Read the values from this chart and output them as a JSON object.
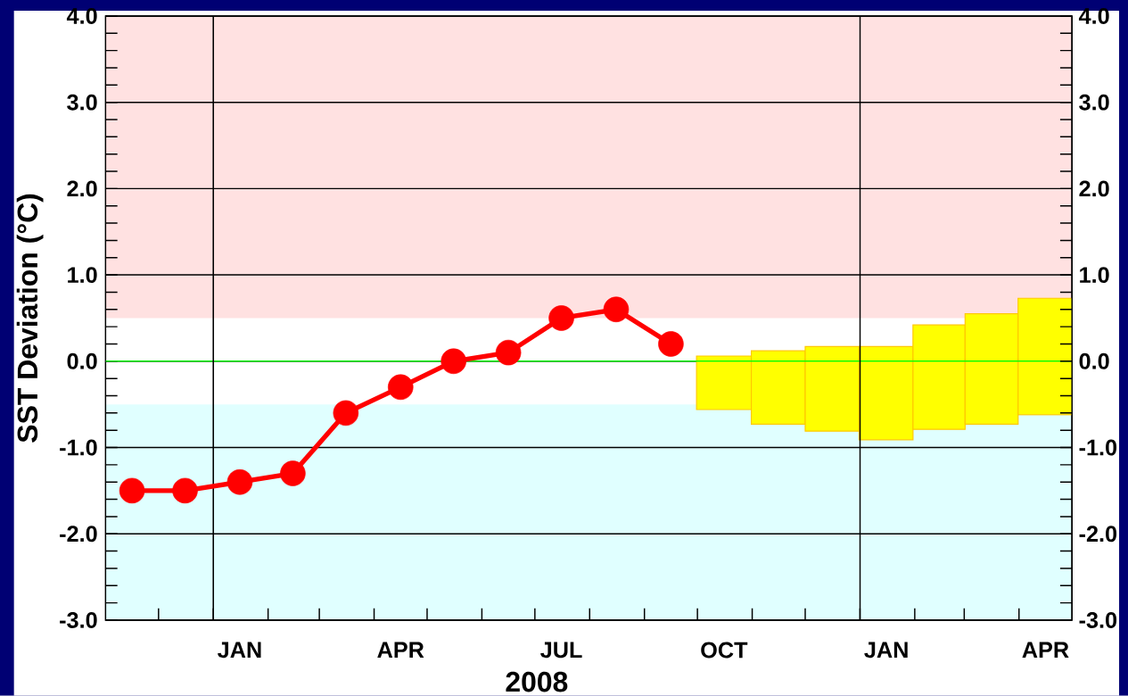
{
  "chart_data": {
    "type": "line",
    "ylabel": "SST Deviation (°C)",
    "xlabel": "2008",
    "xlim": [
      "2007-11-01",
      "2009-05-01"
    ],
    "xticks": [
      {
        "value": "2007-12-01",
        "label": null
      },
      {
        "value": "2008-01-01",
        "label": null
      },
      {
        "value": "2008-02-01",
        "label": null
      },
      {
        "value": "2008-03-01",
        "label": null
      },
      {
        "value": "2008-04-01",
        "label": null
      },
      {
        "value": "2008-05-01",
        "label": null
      },
      {
        "value": "2008-06-01",
        "label": null
      },
      {
        "value": "2008-07-01",
        "label": null
      },
      {
        "value": "2008-08-01",
        "label": null
      },
      {
        "value": "2008-09-01",
        "label": null
      },
      {
        "value": "2008-10-01",
        "label": null
      },
      {
        "value": "2008-11-01",
        "label": null
      },
      {
        "value": "2008-12-01",
        "label": null
      },
      {
        "value": "2009-01-01",
        "label": null
      },
      {
        "value": "2009-02-01",
        "label": null
      },
      {
        "value": "2009-03-01",
        "label": null
      },
      {
        "value": "2009-04-01",
        "label": null
      },
      {
        "value": "2008-01-16",
        "label": "JAN"
      },
      {
        "value": "2008-04-16",
        "label": "APR"
      },
      {
        "value": "2008-07-16",
        "label": "JUL"
      },
      {
        "value": "2008-10-16",
        "label": "OCT"
      },
      {
        "value": "2009-01-16",
        "label": "JAN"
      },
      {
        "value": "2009-04-16",
        "label": "APR"
      }
    ],
    "ylim": [
      -3,
      4
    ],
    "yticks": [
      {
        "value": -3,
        "label": "-3.0"
      },
      {
        "value": -2,
        "label": "-2.0"
      },
      {
        "value": -1,
        "label": "-1.0"
      },
      {
        "value": 0,
        "label": "0.0"
      },
      {
        "value": 1,
        "label": "1.0"
      },
      {
        "value": 2,
        "label": "2.0"
      },
      {
        "value": 3,
        "label": "3.0"
      },
      {
        "value": 4,
        "label": "4.0"
      },
      {
        "value": -2.8,
        "label": null
      },
      {
        "value": -2.6,
        "label": null
      },
      {
        "value": -2.4,
        "label": null
      },
      {
        "value": -2.2,
        "label": null
      },
      {
        "value": -1.8,
        "label": null
      },
      {
        "value": -1.6,
        "label": null
      },
      {
        "value": -1.4,
        "label": null
      },
      {
        "value": -1.2,
        "label": null
      },
      {
        "value": -0.8,
        "label": null
      },
      {
        "value": -0.6,
        "label": null
      },
      {
        "value": -0.4,
        "label": null
      },
      {
        "value": -0.2,
        "label": null
      },
      {
        "value": 0.2,
        "label": null
      },
      {
        "value": 0.4,
        "label": null
      },
      {
        "value": 0.6,
        "label": null
      },
      {
        "value": 0.8,
        "label": null
      },
      {
        "value": 1.2,
        "label": null
      },
      {
        "value": 1.4,
        "label": null
      },
      {
        "value": 1.6,
        "label": null
      },
      {
        "value": 1.8,
        "label": null
      },
      {
        "value": 2.2,
        "label": null
      },
      {
        "value": 2.4,
        "label": null
      },
      {
        "value": 2.6,
        "label": null
      },
      {
        "value": 2.8,
        "label": null
      },
      {
        "value": 3.2,
        "label": null
      },
      {
        "value": 3.4,
        "label": null
      },
      {
        "value": 3.6,
        "label": null
      },
      {
        "value": 3.8,
        "label": null
      }
    ],
    "y2lim": [
      -3,
      4
    ],
    "y2ticks": [
      {
        "value": -3,
        "label": "-3.0"
      },
      {
        "value": -2,
        "label": "-2.0"
      },
      {
        "value": -1,
        "label": "-1.0"
      },
      {
        "value": 0,
        "label": "0.0"
      },
      {
        "value": 1,
        "label": "1.0"
      },
      {
        "value": 2,
        "label": "2.0"
      },
      {
        "value": 3,
        "label": "3.0"
      },
      {
        "value": 4,
        "label": "4.0"
      },
      {
        "value": -2.8,
        "label": null
      },
      {
        "value": -2.6,
        "label": null
      },
      {
        "value": -2.4,
        "label": null
      },
      {
        "value": -2.2,
        "label": null
      },
      {
        "value": -1.8,
        "label": null
      },
      {
        "value": -1.6,
        "label": null
      },
      {
        "value": -1.4,
        "label": null
      },
      {
        "value": -1.2,
        "label": null
      },
      {
        "value": -0.8,
        "label": null
      },
      {
        "value": -0.6,
        "label": null
      },
      {
        "value": -0.4,
        "label": null
      },
      {
        "value": -0.2,
        "label": null
      },
      {
        "value": 0.2,
        "label": null
      },
      {
        "value": 0.4,
        "label": null
      },
      {
        "value": 0.6,
        "label": null
      },
      {
        "value": 0.8,
        "label": null
      },
      {
        "value": 1.2,
        "label": null
      },
      {
        "value": 1.4,
        "label": null
      },
      {
        "value": 1.6,
        "label": null
      },
      {
        "value": 1.8,
        "label": null
      },
      {
        "value": 2.2,
        "label": null
      },
      {
        "value": 2.4,
        "label": null
      },
      {
        "value": 2.6,
        "label": null
      },
      {
        "value": 2.8,
        "label": null
      },
      {
        "value": 3.2,
        "label": null
      },
      {
        "value": 3.4,
        "label": null
      },
      {
        "value": 3.6,
        "label": null
      },
      {
        "value": 3.8,
        "label": null
      }
    ],
    "grid": "y",
    "series": [
      {
        "color": "#ff0000",
        "marker": "circle",
        "line_style": "solid",
        "x": [
          "2007-11-16",
          "2007-12-16",
          "2008-01-16",
          "2008-02-15",
          "2008-03-16",
          "2008-04-16",
          "2008-05-16",
          "2008-06-16",
          "2008-07-16",
          "2008-08-16",
          "2008-09-16"
        ],
        "values": [
          -1.5,
          -1.5,
          -1.4,
          -1.3,
          -0.6,
          -0.3,
          0.0,
          0.1,
          0.5,
          0.6,
          0.2
        ]
      },
      {
        "type": "bar",
        "color": "#ffff00",
        "x": [
          "2008-10-16",
          "2008-11-16",
          "2008-12-16",
          "2009-01-16",
          "2009-02-15",
          "2009-03-16",
          "2009-04-16"
        ],
        "base": [
          -0.56,
          -0.73,
          -0.81,
          -0.91,
          -0.79,
          -0.73,
          -0.62
        ],
        "values": [
          0.62,
          0.85,
          0.98,
          1.08,
          1.21,
          1.28,
          1.35
        ]
      }
    ],
    "ref_lines": [
      {
        "axis": "y",
        "value": 0,
        "color": "#00ff00"
      },
      {
        "axis": "x",
        "value": "2008-01-01",
        "color": "#000000"
      },
      {
        "axis": "x",
        "value": "2009-01-01",
        "color": "#000000"
      }
    ],
    "bands": [
      {
        "axis": "y",
        "from": 0.5,
        "to": 4,
        "color": "#ffe1e1"
      },
      {
        "axis": "y",
        "from": -3,
        "to": -0.5,
        "color": "#e0ffff"
      }
    ]
  }
}
